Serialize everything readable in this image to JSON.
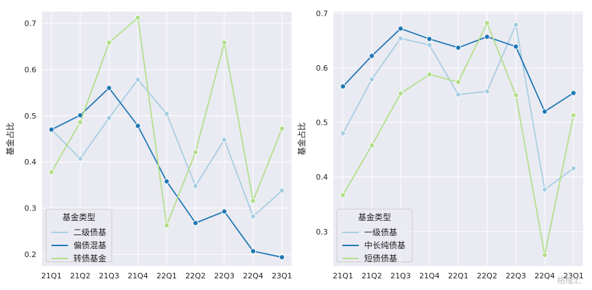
{
  "colors": {
    "background": "#eaeaf2",
    "grid": "#ffffff",
    "light_blue": "#a6cee3",
    "dark_blue": "#1f78b4",
    "light_green": "#b2df8a"
  },
  "watermark": "格隆汇",
  "chart_data": [
    {
      "type": "line",
      "ylabel": "基金占比",
      "xlabel": "",
      "categories": [
        "21Q1",
        "21Q2",
        "21Q3",
        "21Q4",
        "22Q1",
        "22Q2",
        "22Q3",
        "22Q4",
        "23Q1"
      ],
      "ylim": [
        0.175,
        0.725
      ],
      "yticks": [
        0.2,
        0.3,
        0.4,
        0.5,
        0.6,
        0.7
      ],
      "ytick_labels": [
        "0.2",
        "0.3",
        "0.4",
        "0.5",
        "0.6",
        "0.7"
      ],
      "grid": true,
      "legend": {
        "title": "基金类型",
        "placement": "lower-left"
      },
      "series": [
        {
          "name": "二级债基",
          "color": "#a6cee3",
          "values": [
            0.47,
            0.407,
            0.495,
            0.578,
            0.504,
            0.348,
            0.448,
            0.282,
            0.338
          ]
        },
        {
          "name": "偏债混基",
          "color": "#1f78b4",
          "values": [
            0.47,
            0.501,
            0.56,
            0.478,
            0.358,
            0.268,
            0.293,
            0.207,
            0.194
          ]
        },
        {
          "name": "转债基金",
          "color": "#b2df8a",
          "values": [
            0.378,
            0.486,
            0.658,
            0.712,
            0.263,
            0.421,
            0.658,
            0.316,
            0.472
          ]
        }
      ]
    },
    {
      "type": "line",
      "ylabel": "基金占比",
      "xlabel": "",
      "categories": [
        "21Q1",
        "21Q2",
        "21Q3",
        "21Q4",
        "22Q1",
        "22Q2",
        "22Q3",
        "22Q4",
        "23Q1"
      ],
      "ylim": [
        0.237,
        0.703
      ],
      "yticks": [
        0.3,
        0.4,
        0.5,
        0.6,
        0.7
      ],
      "ytick_labels": [
        "0.3",
        "0.4",
        "0.5",
        "0.6",
        "0.7"
      ],
      "grid": true,
      "legend": {
        "title": "基金类型",
        "placement": "lower-left"
      },
      "series": [
        {
          "name": "一级债基",
          "color": "#a6cee3",
          "values": [
            0.48,
            0.579,
            0.654,
            0.642,
            0.551,
            0.557,
            0.679,
            0.377,
            0.416
          ]
        },
        {
          "name": "中长纯债基",
          "color": "#1f78b4",
          "values": [
            0.566,
            0.622,
            0.672,
            0.653,
            0.637,
            0.657,
            0.639,
            0.52,
            0.554
          ]
        },
        {
          "name": "短债债基",
          "color": "#b2df8a",
          "values": [
            0.367,
            0.458,
            0.553,
            0.588,
            0.574,
            0.682,
            0.55,
            0.257,
            0.513
          ]
        }
      ]
    }
  ]
}
